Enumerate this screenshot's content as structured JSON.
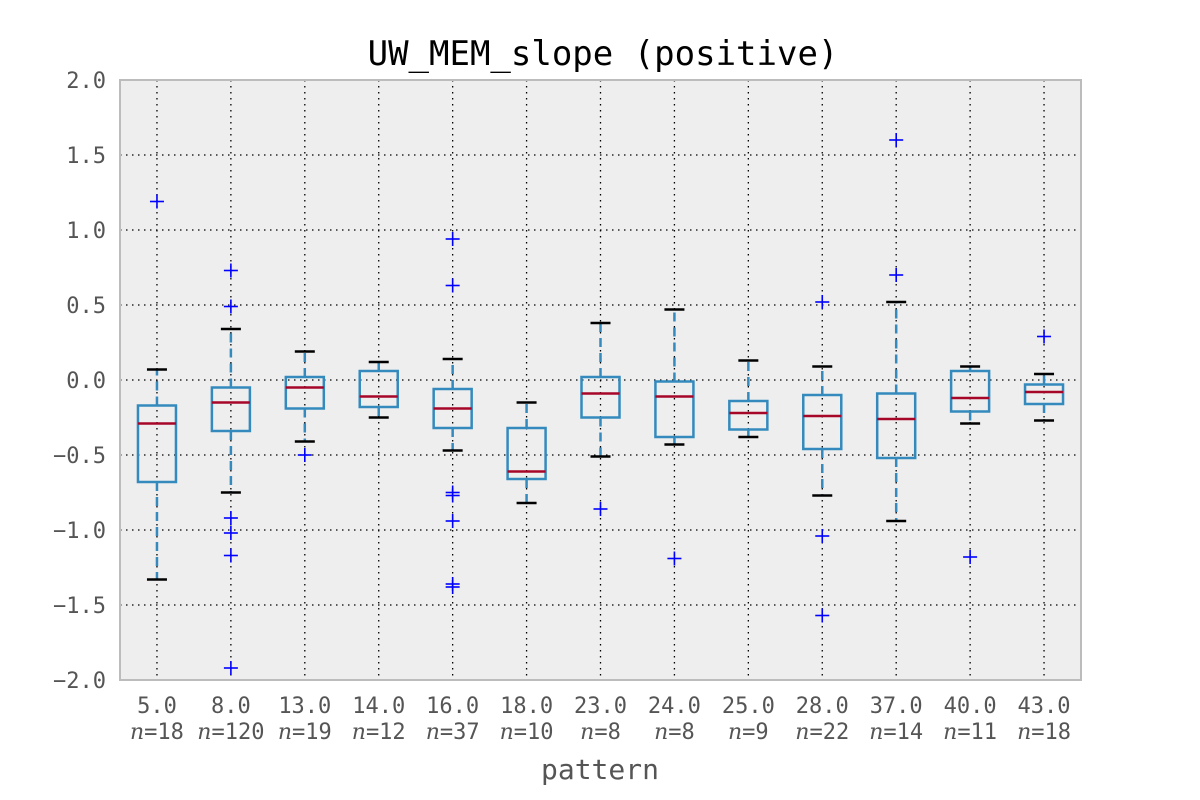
{
  "chart_data": {
    "type": "box",
    "title": "UW_MEM_slope (positive)",
    "xlabel": "pattern",
    "ylabel": "",
    "ylim": [
      -2.0,
      2.0
    ],
    "yticks": [
      "2.0",
      "1.5",
      "1.0",
      "0.5",
      "0.0",
      "−0.5",
      "−1.0",
      "−1.5",
      "−2.0"
    ],
    "ytick_values": [
      2.0,
      1.5,
      1.0,
      0.5,
      0.0,
      -0.5,
      -1.0,
      -1.5,
      -2.0
    ],
    "grid": true,
    "n_prefix": "n",
    "colors": {
      "box": "#348ABD",
      "median": "#A60628",
      "whisker": "#348ABD",
      "cap": "#000000",
      "flier": "#0000FF",
      "background": "#EEEEEE",
      "frame": "#BCBCBC"
    },
    "boxes": [
      {
        "label": "5.0",
        "n": "=18",
        "whislo": -1.33,
        "q1": -0.68,
        "med": -0.29,
        "q3": -0.17,
        "whishi": 0.07,
        "fliers": [
          1.19
        ]
      },
      {
        "label": "8.0",
        "n": "=120",
        "whislo": -0.75,
        "q1": -0.34,
        "med": -0.15,
        "q3": -0.05,
        "whishi": 0.34,
        "fliers": [
          0.73,
          0.49,
          -0.92,
          -1.02,
          -1.17,
          -1.92
        ]
      },
      {
        "label": "13.0",
        "n": "=19",
        "whislo": -0.41,
        "q1": -0.19,
        "med": -0.05,
        "q3": 0.02,
        "whishi": 0.19,
        "fliers": [
          -0.5
        ]
      },
      {
        "label": "14.0",
        "n": "=12",
        "whislo": -0.25,
        "q1": -0.18,
        "med": -0.11,
        "q3": 0.06,
        "whishi": 0.12,
        "fliers": []
      },
      {
        "label": "16.0",
        "n": "=37",
        "whislo": -0.47,
        "q1": -0.32,
        "med": -0.19,
        "q3": -0.06,
        "whishi": 0.14,
        "fliers": [
          0.94,
          0.63,
          -0.75,
          -0.77,
          -0.94,
          -1.36,
          -1.38
        ]
      },
      {
        "label": "18.0",
        "n": "=10",
        "whislo": -0.82,
        "q1": -0.66,
        "med": -0.61,
        "q3": -0.32,
        "whishi": -0.15,
        "fliers": []
      },
      {
        "label": "23.0",
        "n": "=8",
        "whislo": -0.51,
        "q1": -0.25,
        "med": -0.09,
        "q3": 0.02,
        "whishi": 0.38,
        "fliers": [
          -0.86
        ]
      },
      {
        "label": "24.0",
        "n": "=8",
        "whislo": -0.43,
        "q1": -0.38,
        "med": -0.11,
        "q3": -0.01,
        "whishi": 0.47,
        "fliers": [
          -1.19
        ]
      },
      {
        "label": "25.0",
        "n": "=9",
        "whislo": -0.38,
        "q1": -0.33,
        "med": -0.22,
        "q3": -0.14,
        "whishi": 0.13,
        "fliers": []
      },
      {
        "label": "28.0",
        "n": "=22",
        "whislo": -0.77,
        "q1": -0.46,
        "med": -0.24,
        "q3": -0.1,
        "whishi": 0.09,
        "fliers": [
          0.52,
          -1.04,
          -1.57
        ]
      },
      {
        "label": "37.0",
        "n": "=14",
        "whislo": -0.94,
        "q1": -0.52,
        "med": -0.26,
        "q3": -0.09,
        "whishi": 0.52,
        "fliers": [
          1.6,
          0.7
        ]
      },
      {
        "label": "40.0",
        "n": "=11",
        "whislo": -0.29,
        "q1": -0.21,
        "med": -0.12,
        "q3": 0.06,
        "whishi": 0.09,
        "fliers": [
          -1.18
        ]
      },
      {
        "label": "43.0",
        "n": "=18",
        "whislo": -0.27,
        "q1": -0.16,
        "med": -0.08,
        "q3": -0.03,
        "whishi": 0.04,
        "fliers": [
          0.29
        ]
      }
    ]
  }
}
